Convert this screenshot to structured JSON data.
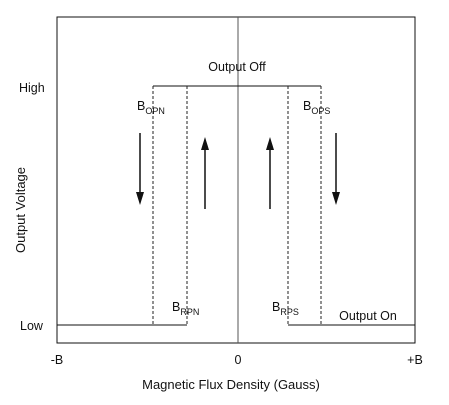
{
  "colors": {
    "line": "#111111",
    "background": "#ffffff"
  },
  "axes": {
    "y_title": "Output Voltage",
    "x_title": "Magnetic Flux Density (Gauss)",
    "y_ticks": {
      "high": "High",
      "low": "Low"
    },
    "x_ticks": {
      "neg": "-B",
      "zero": "0",
      "pos": "+B"
    }
  },
  "labels": {
    "output_off": "Output Off",
    "output_on": "Output On",
    "b_opn": {
      "main": "B",
      "sub": "OPN"
    },
    "b_ops": {
      "main": "B",
      "sub": "OPS"
    },
    "b_rpn": {
      "main": "B",
      "sub": "RPN"
    },
    "b_rps": {
      "main": "B",
      "sub": "RPS"
    }
  }
}
